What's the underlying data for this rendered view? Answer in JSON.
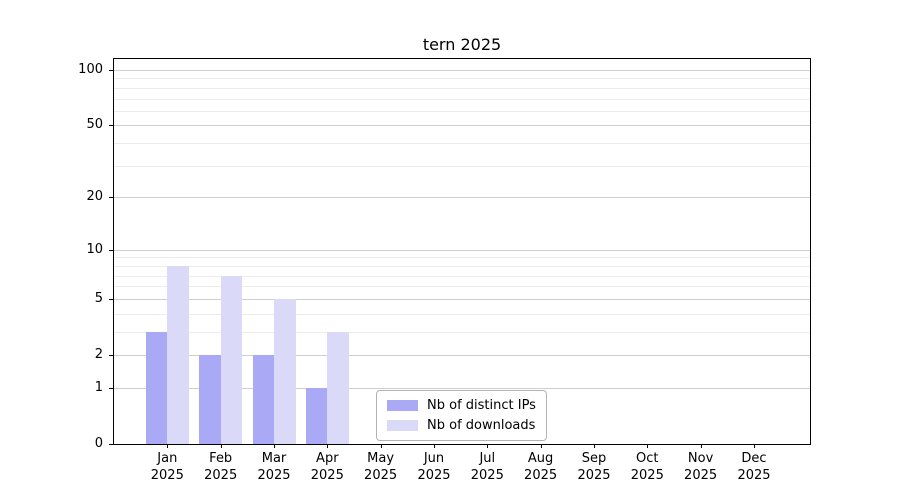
{
  "title": "tern 2025",
  "colors": {
    "background": "#ffffff",
    "axis": "#000000",
    "text": "#000000",
    "grid_major": "#cfcfcf",
    "grid_minor": "#ececec",
    "legend_border": "#b3b3b3",
    "series_distinct_ips": "#a9a9f5",
    "series_downloads": "#dadaf8"
  },
  "legend": {
    "items": [
      {
        "label": "Nb of distinct IPs",
        "color": "#a9a9f5"
      },
      {
        "label": "Nb of downloads",
        "color": "#dadaf8"
      }
    ]
  },
  "chart_data": {
    "type": "bar",
    "title": "tern 2025",
    "categories": [
      "Jan",
      "Feb",
      "Mar",
      "Apr",
      "May",
      "Jun",
      "Jul",
      "Aug",
      "Sep",
      "Oct",
      "Nov",
      "Dec"
    ],
    "year_label": "2025",
    "series": [
      {
        "name": "Nb of distinct IPs",
        "color": "#a9a9f5",
        "values": [
          3,
          2,
          2,
          1,
          0,
          0,
          0,
          0,
          0,
          0,
          0,
          0
        ]
      },
      {
        "name": "Nb of downloads",
        "color": "#dadaf8",
        "values": [
          8,
          7,
          5,
          3,
          0,
          0,
          0,
          0,
          0,
          0,
          0,
          0
        ]
      }
    ],
    "xlabel": "",
    "ylabel": "",
    "yscale": "log1p",
    "ylim": [
      0,
      116
    ],
    "yticks_major": [
      0,
      1,
      2,
      5,
      10,
      20,
      50,
      100
    ],
    "yticks_minor": [
      3,
      4,
      6,
      7,
      8,
      9,
      30,
      40,
      60,
      70,
      80,
      90
    ],
    "grid": true,
    "legend_position": "lower center inside"
  }
}
